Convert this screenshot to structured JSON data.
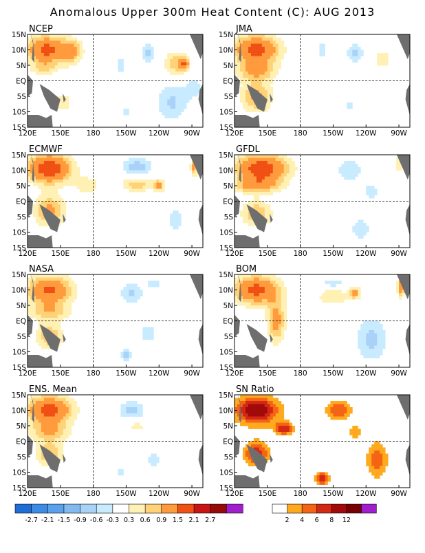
{
  "title": "Anomalous Upper 300m Heat Content (C): AUG 2013",
  "lat_labels": [
    "15N",
    "10N",
    "5N",
    "EQ",
    "5S",
    "10S",
    "15S"
  ],
  "lon_labels": [
    "120E",
    "150E",
    "180",
    "150W",
    "120W",
    "90W"
  ],
  "colors": {
    "land": "#6e6e6e",
    "ocean_base": "#ffffff",
    "anomaly_scale": [
      "#1e6ed8",
      "#3c8ce6",
      "#5aa0eb",
      "#82b9f0",
      "#aad2f8",
      "#c8ebff",
      "#ffffff",
      "#fff0b4",
      "#ffd278",
      "#ff9b3c",
      "#f05014",
      "#c81414",
      "#960a0a",
      "#a01ecd"
    ],
    "sn_scale": [
      "#ffffff",
      "#ffaa1e",
      "#f56414",
      "#d22814",
      "#a00a0a",
      "#780005",
      "#a01ecd"
    ]
  },
  "chart_data": [
    {
      "type": "heatmap",
      "name": "NCEP",
      "x": [
        "120E",
        "150E",
        "180",
        "150W",
        "120W",
        "90W"
      ],
      "y": [
        "15N",
        "10N",
        "5N",
        "EQ",
        "5S",
        "10S",
        "15S"
      ],
      "xlim": [
        120,
        280
      ],
      "ylim": [
        -15,
        15
      ],
      "features": [
        {
          "lon": 137,
          "lat": 10,
          "rx": 17,
          "ry": 4.5,
          "v": 1.7
        },
        {
          "lon": 160,
          "lat": 9.5,
          "rx": 10,
          "ry": 4,
          "v": 1.0
        },
        {
          "lon": 135,
          "lat": 4,
          "rx": 12,
          "ry": 2,
          "v": 0.5
        },
        {
          "lon": 255,
          "lat": 5.5,
          "rx": 10,
          "ry": 4,
          "v": 0.8
        },
        {
          "lon": 263,
          "lat": 5.5,
          "rx": 4,
          "ry": 2,
          "v": 1.4
        },
        {
          "lon": 230,
          "lat": 9,
          "rx": 6,
          "ry": 3,
          "v": -0.7
        },
        {
          "lon": 205,
          "lat": 5,
          "rx": 7,
          "ry": 3,
          "v": -0.4
        },
        {
          "lon": 210,
          "lat": -10,
          "rx": 10,
          "ry": 4,
          "v": -0.35
        },
        {
          "lon": 252,
          "lat": -7,
          "rx": 14,
          "ry": 6,
          "v": -0.65
        },
        {
          "lon": 272,
          "lat": -2,
          "rx": 9,
          "ry": 4,
          "v": -0.4
        },
        {
          "lon": 150,
          "lat": -7,
          "rx": 10,
          "ry": 3,
          "v": 0.6
        }
      ]
    },
    {
      "type": "heatmap",
      "name": "JMA",
      "x": [
        "120E",
        "150E",
        "180",
        "150W",
        "120W",
        "90W"
      ],
      "y": [
        "15N",
        "10N",
        "5N",
        "EQ",
        "5S",
        "10S",
        "15S"
      ],
      "xlim": [
        120,
        280
      ],
      "ylim": [
        -15,
        15
      ],
      "features": [
        {
          "lon": 140,
          "lat": 10,
          "rx": 20,
          "ry": 4.5,
          "v": 1.8
        },
        {
          "lon": 140,
          "lat": 3,
          "rx": 18,
          "ry": 3,
          "v": 0.9
        },
        {
          "lon": 140,
          "lat": -5,
          "rx": 14,
          "ry": 5,
          "v": 1.0
        },
        {
          "lon": 230,
          "lat": 9,
          "rx": 7,
          "ry": 3,
          "v": -0.7
        },
        {
          "lon": 200,
          "lat": 10,
          "rx": 5,
          "ry": 3,
          "v": -0.5
        },
        {
          "lon": 225,
          "lat": -8,
          "rx": 6,
          "ry": 3,
          "v": -0.4
        },
        {
          "lon": 255,
          "lat": 7,
          "rx": 8,
          "ry": 3,
          "v": 0.5
        }
      ]
    },
    {
      "type": "heatmap",
      "name": "ECMWF",
      "x": [
        "120E",
        "150E",
        "180",
        "150W",
        "120W",
        "90W"
      ],
      "y": [
        "15N",
        "10N",
        "5N",
        "EQ",
        "5S",
        "10S",
        "15S"
      ],
      "xlim": [
        120,
        280
      ],
      "ylim": [
        -15,
        15
      ],
      "features": [
        {
          "lon": 140,
          "lat": 10.5,
          "rx": 19,
          "ry": 4.5,
          "v": 2.0
        },
        {
          "lon": 140,
          "lat": -3,
          "rx": 14,
          "ry": 5,
          "v": 1.0
        },
        {
          "lon": 175,
          "lat": 5,
          "rx": 12,
          "ry": 3,
          "v": 0.5
        },
        {
          "lon": 220,
          "lat": 5.5,
          "rx": 14,
          "ry": 2.5,
          "v": 0.8
        },
        {
          "lon": 240,
          "lat": 5,
          "rx": 5,
          "ry": 2,
          "v": 1.0
        },
        {
          "lon": 220,
          "lat": 11,
          "rx": 14,
          "ry": 3,
          "v": -0.8
        },
        {
          "lon": 255,
          "lat": -6,
          "rx": 14,
          "ry": 7,
          "v": -0.35
        },
        {
          "lon": 272,
          "lat": 11,
          "rx": 3,
          "ry": 2.5,
          "v": 1.2
        }
      ]
    },
    {
      "type": "heatmap",
      "name": "GFDL",
      "x": [
        "120E",
        "150E",
        "180",
        "150W",
        "120W",
        "90W"
      ],
      "y": [
        "15N",
        "10N",
        "5N",
        "EQ",
        "5S",
        "10S",
        "15S"
      ],
      "xlim": [
        120,
        280
      ],
      "ylim": [
        -15,
        15
      ],
      "features": [
        {
          "lon": 145,
          "lat": 10.5,
          "rx": 23,
          "ry": 4.5,
          "v": 1.9
        },
        {
          "lon": 140,
          "lat": 5,
          "rx": 20,
          "ry": 2.5,
          "v": 1.0
        },
        {
          "lon": 140,
          "lat": -4,
          "rx": 14,
          "ry": 4,
          "v": 0.9
        },
        {
          "lon": 225,
          "lat": 10,
          "rx": 14,
          "ry": 4,
          "v": -0.5
        },
        {
          "lon": 245,
          "lat": 3,
          "rx": 8,
          "ry": 3,
          "v": -0.45
        },
        {
          "lon": 235,
          "lat": -9,
          "rx": 12,
          "ry": 5,
          "v": -0.4
        },
        {
          "lon": 270,
          "lat": 12,
          "rx": 4,
          "ry": 2,
          "v": 0.7
        }
      ]
    },
    {
      "type": "heatmap",
      "name": "NASA",
      "x": [
        "120E",
        "150E",
        "180",
        "150W",
        "120W",
        "90W"
      ],
      "y": [
        "15N",
        "10N",
        "5N",
        "EQ",
        "5S",
        "10S",
        "15S"
      ],
      "xlim": [
        120,
        280
      ],
      "ylim": [
        -15,
        15
      ],
      "features": [
        {
          "lon": 140,
          "lat": 10,
          "rx": 20,
          "ry": 4.5,
          "v": 1.6
        },
        {
          "lon": 140,
          "lat": 3,
          "rx": 18,
          "ry": 3,
          "v": 0.8
        },
        {
          "lon": 140,
          "lat": -5,
          "rx": 12,
          "ry": 4,
          "v": 0.9
        },
        {
          "lon": 215,
          "lat": 9,
          "rx": 10,
          "ry": 3,
          "v": -0.7
        },
        {
          "lon": 235,
          "lat": 12,
          "rx": 6,
          "ry": 2,
          "v": -0.5
        },
        {
          "lon": 230,
          "lat": -4,
          "rx": 10,
          "ry": 4,
          "v": -0.4
        },
        {
          "lon": 210,
          "lat": -11,
          "rx": 5,
          "ry": 2,
          "v": -0.7
        }
      ]
    },
    {
      "type": "heatmap",
      "name": "BOM",
      "x": [
        "120E",
        "150E",
        "180",
        "150W",
        "120W",
        "90W"
      ],
      "y": [
        "15N",
        "10N",
        "5N",
        "EQ",
        "5S",
        "10S",
        "15S"
      ],
      "xlim": [
        120,
        280
      ],
      "ylim": [
        -15,
        15
      ],
      "features": [
        {
          "lon": 140,
          "lat": 10,
          "rx": 20,
          "ry": 4.5,
          "v": 1.7
        },
        {
          "lon": 158,
          "lat": 0,
          "rx": 8,
          "ry": 7,
          "v": 1.1
        },
        {
          "lon": 210,
          "lat": 8,
          "rx": 14,
          "ry": 3,
          "v": 0.6
        },
        {
          "lon": 230,
          "lat": 9,
          "rx": 5,
          "ry": 2,
          "v": 1.0
        },
        {
          "lon": 210,
          "lat": 12,
          "rx": 12,
          "ry": 2,
          "v": -0.5
        },
        {
          "lon": 245,
          "lat": -6,
          "rx": 14,
          "ry": 7,
          "v": -0.7
        },
        {
          "lon": 272,
          "lat": 11,
          "rx": 3,
          "ry": 3,
          "v": 1.4
        }
      ]
    },
    {
      "type": "heatmap",
      "name": "ENS. Mean",
      "x": [
        "120E",
        "150E",
        "180",
        "150W",
        "120W",
        "90W"
      ],
      "y": [
        "15N",
        "10N",
        "5N",
        "EQ",
        "5S",
        "10S",
        "15S"
      ],
      "xlim": [
        120,
        280
      ],
      "ylim": [
        -15,
        15
      ],
      "features": [
        {
          "lon": 140,
          "lat": 10,
          "rx": 20,
          "ry": 4.5,
          "v": 1.8
        },
        {
          "lon": 140,
          "lat": 3,
          "rx": 18,
          "ry": 3,
          "v": 0.8
        },
        {
          "lon": 140,
          "lat": -4,
          "rx": 13,
          "ry": 4,
          "v": 0.9
        },
        {
          "lon": 215,
          "lat": 10,
          "rx": 12,
          "ry": 3,
          "v": -0.7
        },
        {
          "lon": 220,
          "lat": 5,
          "rx": 10,
          "ry": 2,
          "v": 0.4
        },
        {
          "lon": 235,
          "lat": -6,
          "rx": 12,
          "ry": 5,
          "v": -0.35
        },
        {
          "lon": 205,
          "lat": -10,
          "rx": 5,
          "ry": 2,
          "v": -0.5
        }
      ]
    },
    {
      "type": "heatmap",
      "name": "SN Ratio",
      "x": [
        "120E",
        "150E",
        "180",
        "150W",
        "120W",
        "90W"
      ],
      "y": [
        "15N",
        "10N",
        "5N",
        "EQ",
        "5S",
        "10S",
        "15S"
      ],
      "xlim": [
        120,
        280
      ],
      "ylim": [
        -15,
        15
      ],
      "features": [
        {
          "lon": 140,
          "lat": 10,
          "rx": 20,
          "ry": 4.5,
          "v": 10
        },
        {
          "lon": 140,
          "lat": -4,
          "rx": 12,
          "ry": 4,
          "v": 7
        },
        {
          "lon": 165,
          "lat": 4,
          "rx": 8,
          "ry": 2,
          "v": 8
        },
        {
          "lon": 215,
          "lat": 10,
          "rx": 12,
          "ry": 3,
          "v": 6
        },
        {
          "lon": 250,
          "lat": -6,
          "rx": 10,
          "ry": 6,
          "v": 5
        },
        {
          "lon": 200,
          "lat": -12,
          "rx": 6,
          "ry": 2,
          "v": 8
        },
        {
          "lon": 230,
          "lat": 3,
          "rx": 6,
          "ry": 2,
          "v": 4
        }
      ]
    }
  ],
  "anomaly_colorbar": {
    "labels": [
      "-2.7",
      "-2.1",
      "-1.5",
      "-0.9",
      "-0.6",
      "-0.3",
      "0.3",
      "0.6",
      "0.9",
      "1.5",
      "2.1",
      "2.7"
    ]
  },
  "sn_colorbar": {
    "labels": [
      "2",
      "4",
      "6",
      "8",
      "12"
    ]
  }
}
